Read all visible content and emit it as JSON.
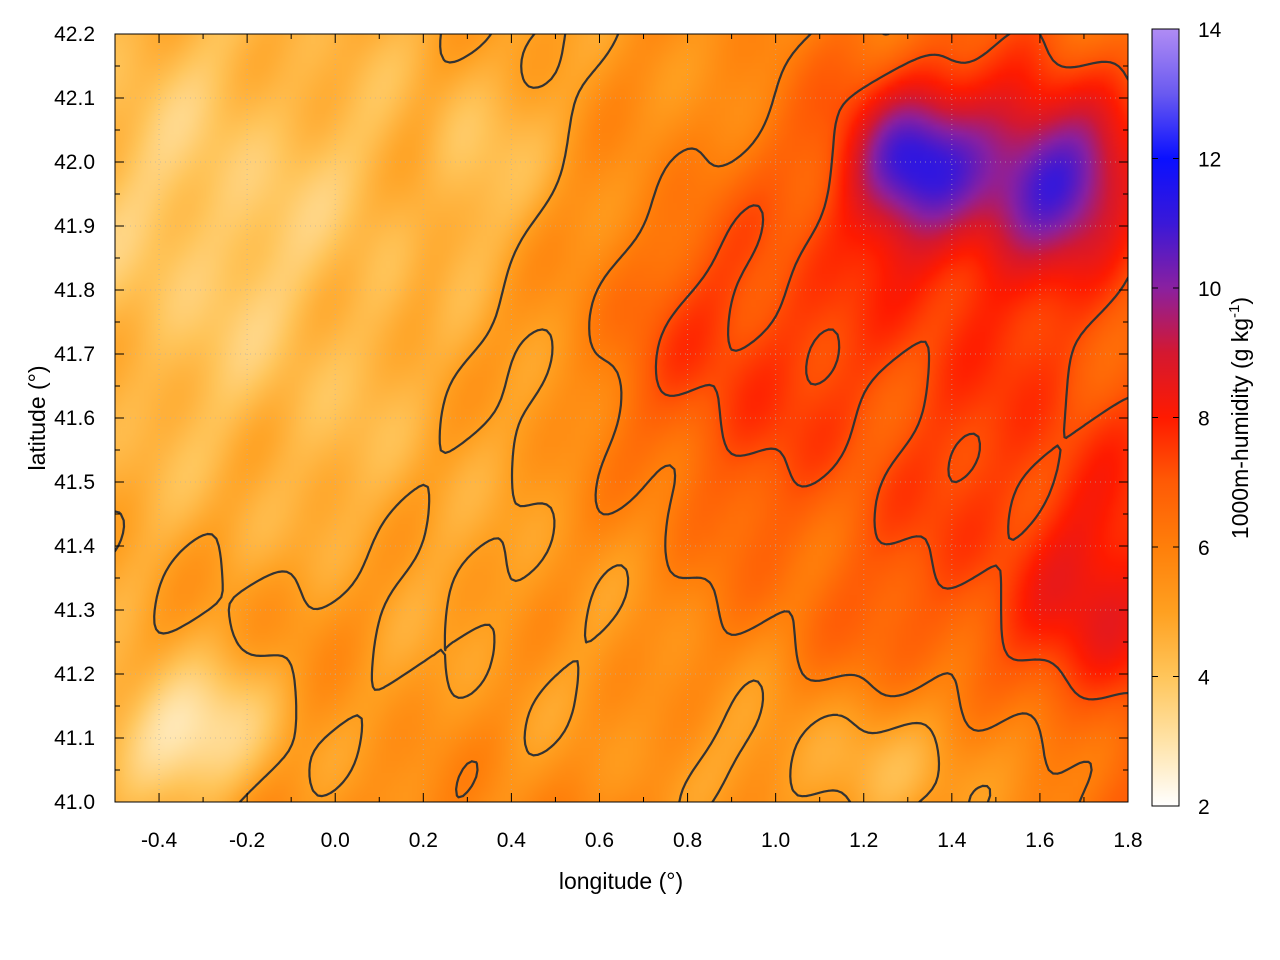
{
  "chart_data": {
    "type": "heatmap",
    "title": "",
    "xlabel": "longitude (°)",
    "ylabel": "latitude (°)",
    "colorbar_label": "1000m-humidity (g kg",
    "colorbar_label_sup": "-1",
    "colorbar_label_end": ")",
    "xlim": [
      -0.5,
      1.8
    ],
    "ylim": [
      41.0,
      42.2
    ],
    "clim": [
      2,
      14
    ],
    "xticks": [
      -0.4,
      -0.2,
      0.0,
      0.2,
      0.4,
      0.6,
      0.8,
      1.0,
      1.2,
      1.4,
      1.6,
      1.8
    ],
    "xtick_labels": [
      "-0.4",
      "-0.2",
      "0.0",
      "0.2",
      "0.4",
      "0.6",
      "0.8",
      "1.0",
      "1.2",
      "1.4",
      "1.6",
      "1.8"
    ],
    "yticks": [
      41.0,
      41.1,
      41.2,
      41.3,
      41.4,
      41.5,
      41.6,
      41.7,
      41.8,
      41.9,
      42.0,
      42.1,
      42.2
    ],
    "ytick_labels": [
      "41.0",
      "41.1",
      "41.2",
      "41.3",
      "41.4",
      "41.5",
      "41.6",
      "41.7",
      "41.8",
      "41.9",
      "42.0",
      "42.1",
      "42.2"
    ],
    "colorbar_ticks": [
      2,
      4,
      6,
      8,
      10,
      12,
      14
    ],
    "colorbar_tick_labels": [
      "2",
      "4",
      "6",
      "8",
      "10",
      "12",
      "14"
    ],
    "grid": true,
    "colormap": [
      {
        "v": 2,
        "color": "#ffffff"
      },
      {
        "v": 3,
        "color": "#ffe3a8"
      },
      {
        "v": 4,
        "color": "#ffc55a"
      },
      {
        "v": 5,
        "color": "#ffa020"
      },
      {
        "v": 6,
        "color": "#ff7f0a"
      },
      {
        "v": 7,
        "color": "#ff5a05"
      },
      {
        "v": 8,
        "color": "#ff1a00"
      },
      {
        "v": 9,
        "color": "#d41830"
      },
      {
        "v": 10,
        "color": "#8a20a0"
      },
      {
        "v": 11,
        "color": "#3a18d8"
      },
      {
        "v": 12,
        "color": "#0a10ff"
      },
      {
        "v": 13,
        "color": "#6a5af0"
      },
      {
        "v": 14,
        "color": "#b08cf4"
      }
    ],
    "field_features": [
      {
        "lon": 0.0,
        "lat": 41.6,
        "amp": -1.0,
        "sx": 0.45,
        "sy": 0.35
      },
      {
        "lon": -0.35,
        "lat": 41.1,
        "amp": -2.4,
        "sx": 0.15,
        "sy": 0.08
      },
      {
        "lon": 1.3,
        "lat": 41.05,
        "amp": -2.0,
        "sx": 0.35,
        "sy": 0.1
      },
      {
        "lon": -0.3,
        "lat": 41.95,
        "amp": -0.8,
        "sx": 0.25,
        "sy": 0.2
      },
      {
        "lon": 0.85,
        "lat": 41.75,
        "amp": 1.5,
        "sx": 0.22,
        "sy": 0.15
      },
      {
        "lon": 0.9,
        "lat": 41.55,
        "amp": 0.6,
        "sx": 0.15,
        "sy": 0.12
      },
      {
        "lon": 1.45,
        "lat": 41.6,
        "amp": 1.2,
        "sx": 0.3,
        "sy": 0.35
      },
      {
        "lon": 1.75,
        "lat": 41.3,
        "amp": 1.5,
        "sx": 0.12,
        "sy": 0.15
      },
      {
        "lon": 1.3,
        "lat": 42.0,
        "amp": 3.2,
        "sx": 0.1,
        "sy": 0.08
      },
      {
        "lon": 1.65,
        "lat": 41.98,
        "amp": 3.0,
        "sx": 0.12,
        "sy": 0.09
      },
      {
        "lon": 1.45,
        "lat": 42.0,
        "amp": 1.8,
        "sx": 0.25,
        "sy": 0.15
      },
      {
        "lon": 0.3,
        "lat": 42.0,
        "amp": -0.8,
        "sx": 0.15,
        "sy": 0.12
      },
      {
        "lon": 0.6,
        "lat": 41.2,
        "amp": -0.4,
        "sx": 0.3,
        "sy": 0.15
      },
      {
        "lon": -0.1,
        "lat": 41.3,
        "amp": 0.5,
        "sx": 0.12,
        "sy": 0.07
      },
      {
        "lon": 0.2,
        "lat": 41.9,
        "amp": 0.5,
        "sx": 0.05,
        "sy": 0.15
      }
    ],
    "contour_levels": [
      5.0,
      6.0,
      7.2
    ]
  }
}
